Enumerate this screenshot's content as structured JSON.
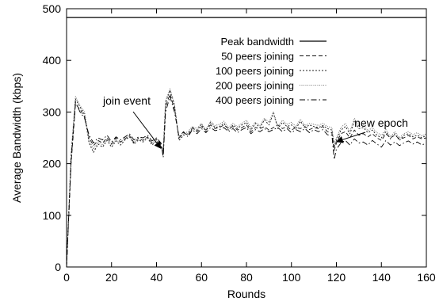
{
  "chart_data": {
    "type": "line",
    "xlabel": "Rounds",
    "ylabel": "Average Bandwidth (kbps)",
    "xlim": [
      0,
      160
    ],
    "ylim": [
      0,
      500
    ],
    "xticks": [
      0,
      20,
      40,
      60,
      80,
      100,
      120,
      140,
      160
    ],
    "yticks": [
      0,
      100,
      200,
      300,
      400,
      500
    ],
    "grid": false,
    "legend_position": "top-right",
    "series": [
      {
        "name": "Peak bandwidth",
        "style": "solid",
        "x": [
          0,
          160
        ],
        "y": [
          483,
          483
        ]
      },
      {
        "name": "50 peers joining",
        "style": "dashed",
        "x": [
          0,
          2,
          4,
          6,
          8,
          10,
          12,
          14,
          16,
          18,
          20,
          22,
          24,
          26,
          28,
          30,
          32,
          34,
          36,
          38,
          40,
          42,
          43,
          44,
          46,
          48,
          50,
          52,
          54,
          56,
          58,
          60,
          62,
          64,
          66,
          68,
          70,
          72,
          74,
          76,
          78,
          80,
          82,
          84,
          86,
          88,
          90,
          92,
          94,
          96,
          98,
          100,
          102,
          104,
          106,
          108,
          110,
          112,
          114,
          116,
          118,
          119,
          120,
          122,
          124,
          126,
          128,
          130,
          132,
          134,
          136,
          138,
          140,
          142,
          144,
          146,
          148,
          150,
          152,
          154,
          156,
          158,
          160
        ],
        "y": [
          0,
          200,
          315,
          305,
          290,
          250,
          235,
          245,
          240,
          250,
          238,
          250,
          242,
          248,
          255,
          240,
          250,
          245,
          252,
          240,
          248,
          238,
          218,
          310,
          335,
          305,
          250,
          260,
          255,
          270,
          262,
          272,
          265,
          275,
          268,
          270,
          275,
          268,
          272,
          265,
          270,
          275,
          262,
          270,
          268,
          272,
          265,
          270,
          275,
          268,
          272,
          265,
          270,
          268,
          272,
          266,
          270,
          268,
          272,
          262,
          260,
          225,
          240,
          258,
          262,
          250,
          265,
          255,
          258,
          252,
          258,
          250,
          245,
          258,
          250,
          255,
          248,
          250,
          255,
          248,
          252,
          248,
          250
        ]
      },
      {
        "name": "100 peers joining",
        "style": "dotted",
        "x": [
          0,
          2,
          4,
          6,
          8,
          10,
          12,
          14,
          16,
          18,
          20,
          22,
          24,
          26,
          28,
          30,
          32,
          34,
          36,
          38,
          40,
          42,
          43,
          44,
          46,
          48,
          50,
          52,
          54,
          56,
          58,
          60,
          62,
          64,
          66,
          68,
          70,
          72,
          74,
          76,
          78,
          80,
          82,
          84,
          86,
          88,
          90,
          92,
          94,
          96,
          98,
          100,
          102,
          104,
          106,
          108,
          110,
          112,
          114,
          116,
          118,
          119,
          120,
          122,
          124,
          126,
          128,
          130,
          132,
          134,
          136,
          138,
          140,
          142,
          144,
          146,
          148,
          150,
          152,
          154,
          156,
          158,
          160
        ],
        "y": [
          0,
          215,
          325,
          310,
          295,
          240,
          222,
          238,
          232,
          245,
          232,
          244,
          236,
          246,
          252,
          238,
          246,
          242,
          250,
          236,
          244,
          232,
          222,
          318,
          342,
          312,
          245,
          255,
          258,
          268,
          265,
          276,
          262,
          280,
          270,
          272,
          278,
          265,
          275,
          268,
          275,
          280,
          265,
          278,
          270,
          285,
          275,
          298,
          268,
          280,
          272,
          275,
          268,
          282,
          270,
          275,
          272,
          270,
          274,
          268,
          265,
          232,
          245,
          265,
          272,
          258,
          282,
          268,
          270,
          260,
          265,
          255,
          250,
          262,
          248,
          258,
          245,
          255,
          258,
          252,
          255,
          250,
          255
        ]
      },
      {
        "name": "200 peers joining",
        "style": "fine-dotted",
        "x": [
          0,
          2,
          4,
          6,
          8,
          10,
          12,
          14,
          16,
          18,
          20,
          22,
          24,
          26,
          28,
          30,
          32,
          34,
          36,
          38,
          40,
          42,
          43,
          44,
          46,
          48,
          50,
          52,
          54,
          56,
          58,
          60,
          62,
          64,
          66,
          68,
          70,
          72,
          74,
          76,
          78,
          80,
          82,
          84,
          86,
          88,
          90,
          92,
          94,
          96,
          98,
          100,
          102,
          104,
          106,
          108,
          110,
          112,
          114,
          116,
          118,
          119,
          120,
          122,
          124,
          126,
          128,
          130,
          132,
          134,
          136,
          138,
          140,
          142,
          144,
          146,
          148,
          150,
          152,
          154,
          156,
          158,
          160
        ],
        "y": [
          0,
          220,
          330,
          312,
          300,
          245,
          228,
          242,
          236,
          248,
          236,
          246,
          240,
          250,
          254,
          242,
          248,
          246,
          252,
          240,
          246,
          236,
          225,
          322,
          345,
          315,
          248,
          258,
          262,
          272,
          268,
          278,
          266,
          282,
          274,
          276,
          282,
          270,
          278,
          272,
          278,
          284,
          270,
          280,
          274,
          288,
          280,
          300,
          272,
          284,
          276,
          280,
          272,
          286,
          274,
          278,
          276,
          274,
          278,
          272,
          270,
          238,
          250,
          270,
          278,
          262,
          288,
          272,
          275,
          264,
          270,
          260,
          255,
          266,
          252,
          262,
          250,
          258,
          262,
          256,
          260,
          254,
          258
        ]
      },
      {
        "name": "400 peers joining",
        "style": "dash-dot",
        "x": [
          0,
          2,
          4,
          6,
          8,
          10,
          12,
          14,
          16,
          18,
          20,
          22,
          24,
          26,
          28,
          30,
          32,
          34,
          36,
          38,
          40,
          42,
          43,
          44,
          46,
          48,
          50,
          52,
          54,
          56,
          58,
          60,
          62,
          64,
          66,
          68,
          70,
          72,
          74,
          76,
          78,
          80,
          82,
          84,
          86,
          88,
          90,
          92,
          94,
          96,
          98,
          100,
          102,
          104,
          106,
          108,
          110,
          112,
          114,
          116,
          118,
          119,
          120,
          122,
          124,
          126,
          128,
          130,
          132,
          134,
          136,
          138,
          140,
          142,
          144,
          146,
          148,
          150,
          152,
          154,
          156,
          158,
          160
        ],
        "y": [
          0,
          205,
          320,
          300,
          288,
          255,
          240,
          250,
          246,
          255,
          242,
          252,
          246,
          252,
          258,
          246,
          252,
          250,
          255,
          244,
          250,
          240,
          212,
          300,
          330,
          300,
          252,
          262,
          252,
          266,
          258,
          268,
          260,
          270,
          264,
          266,
          270,
          262,
          268,
          260,
          266,
          270,
          258,
          266,
          262,
          268,
          262,
          266,
          270,
          262,
          268,
          260,
          266,
          262,
          268,
          260,
          266,
          262,
          266,
          256,
          255,
          208,
          228,
          240,
          245,
          236,
          248,
          240,
          242,
          236,
          245,
          238,
          232,
          245,
          236,
          242,
          235,
          240,
          244,
          238,
          242,
          236,
          240
        ]
      }
    ],
    "annotations": [
      {
        "text": "join event",
        "x": 43,
        "y": 225
      },
      {
        "text": "new epoch",
        "x": 119,
        "y": 238
      }
    ]
  }
}
